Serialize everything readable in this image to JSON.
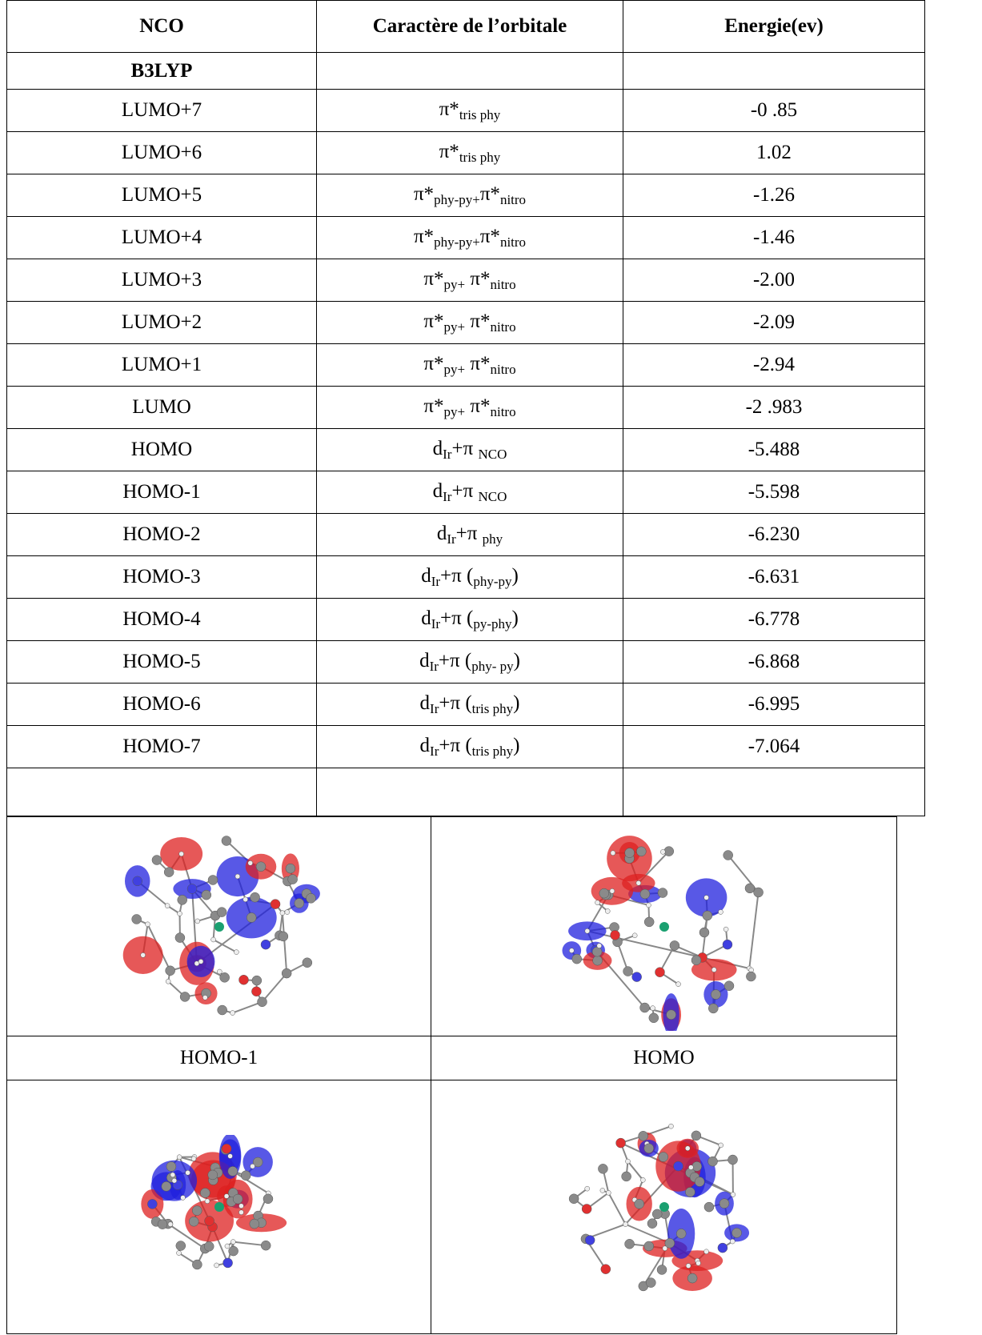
{
  "table": {
    "header": [
      "NCO",
      "Caractère de l’orbitale",
      "Energie(ev)"
    ],
    "method": "B3LYP",
    "rows": [
      {
        "orbital": "LUMO+7",
        "character": [
          {
            "base": "π*",
            "sub": "tris phy"
          }
        ],
        "energy": "-0 .85"
      },
      {
        "orbital": "LUMO+6",
        "character": [
          {
            "base": "π*",
            "sub": "tris phy"
          }
        ],
        "energy": "1.02"
      },
      {
        "orbital": "LUMO+5",
        "character": [
          {
            "base": "π*",
            "sub": "phy-py+"
          },
          {
            "base": "π*",
            "sub": "nitro"
          }
        ],
        "energy": "-1.26"
      },
      {
        "orbital": "LUMO+4",
        "character": [
          {
            "base": "π*",
            "sub": "phy-py+"
          },
          {
            "base": "π*",
            "sub": "nitro"
          }
        ],
        "energy": "-1.46"
      },
      {
        "orbital": "LUMO+3",
        "character": [
          {
            "base": "π*",
            "sub": "py+"
          },
          {
            "base": " π*",
            "sub": "nitro"
          }
        ],
        "energy": "-2.00"
      },
      {
        "orbital": "LUMO+2",
        "character": [
          {
            "base": "π*",
            "sub": "py+"
          },
          {
            "base": " π*",
            "sub": "nitro"
          }
        ],
        "energy": "-2.09"
      },
      {
        "orbital": "LUMO+1",
        "character": [
          {
            "base": "π*",
            "sub": "py+"
          },
          {
            "base": " π*",
            "sub": "nitro"
          }
        ],
        "energy": "-2.94"
      },
      {
        "orbital": "LUMO",
        "character": [
          {
            "base": "π*",
            "sub": "py+"
          },
          {
            "base": " π*",
            "sub": "nitro"
          }
        ],
        "energy": "-2 .983"
      },
      {
        "orbital": "HOMO",
        "character": [
          {
            "base": "d",
            "sub": "Ir"
          },
          {
            "base": "+π ",
            "sub": "NCO"
          }
        ],
        "energy": "-5.488"
      },
      {
        "orbital": "HOMO-1",
        "character": [
          {
            "base": "d",
            "sub": "Ir"
          },
          {
            "base": "+π ",
            "sub": "NCO"
          }
        ],
        "energy": "-5.598"
      },
      {
        "orbital": "HOMO-2",
        "character": [
          {
            "base": "d",
            "sub": "Ir"
          },
          {
            "base": "+π ",
            "sub": "phy"
          }
        ],
        "energy": "-6.230"
      },
      {
        "orbital": "HOMO-3",
        "character": [
          {
            "base": "d",
            "sub": "Ir"
          },
          {
            "base": "+π (",
            "sub": "phy-py"
          },
          {
            "base": ")"
          }
        ],
        "energy": "-6.631"
      },
      {
        "orbital": "HOMO-4",
        "character": [
          {
            "base": "d",
            "sub": "Ir"
          },
          {
            "base": "+π (",
            "sub": "py-phy"
          },
          {
            "base": ")"
          }
        ],
        "energy": "-6.778"
      },
      {
        "orbital": "HOMO-5",
        "character": [
          {
            "base": "d",
            "sub": "Ir"
          },
          {
            "base": "+π (",
            "sub": "phy- py"
          },
          {
            "base": ")"
          }
        ],
        "energy": "-6.868"
      },
      {
        "orbital": "HOMO-6",
        "character": [
          {
            "base": "d",
            "sub": "Ir"
          },
          {
            "base": "+π (",
            "sub": "tris phy"
          },
          {
            "base": ")"
          }
        ],
        "energy": "-6.995"
      },
      {
        "orbital": "HOMO-7",
        "character": [
          {
            "base": "d",
            "sub": "Ir"
          },
          {
            "base": "+π (",
            "sub": "tris phy"
          },
          {
            "base": ")"
          }
        ],
        "energy": "-7.064"
      }
    ]
  },
  "figures": {
    "captions": [
      "HOMO-1",
      "HOMO"
    ]
  }
}
